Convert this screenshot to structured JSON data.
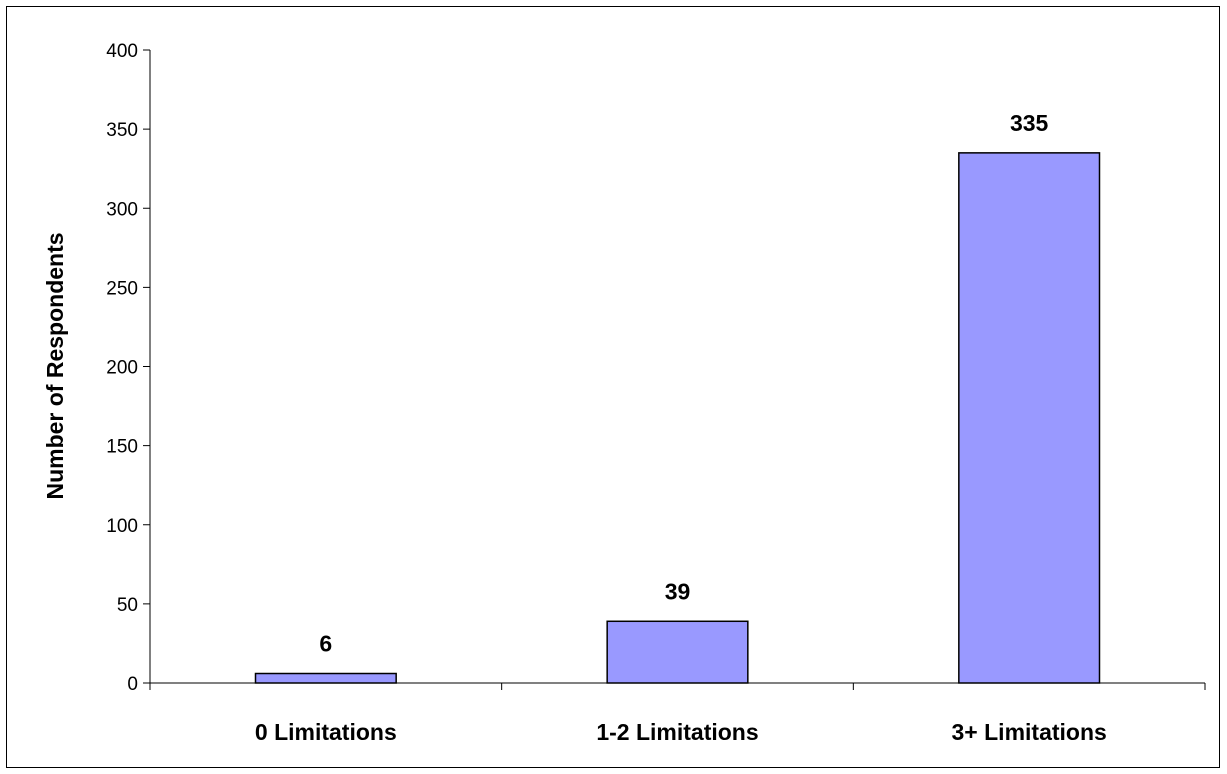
{
  "chart_data": {
    "type": "bar",
    "title": "",
    "xlabel": "",
    "ylabel": "Number of Respondents",
    "categories": [
      "0 Limitations",
      "1-2 Limitations",
      "3+ Limitations"
    ],
    "values": [
      6,
      39,
      335
    ],
    "data_labels": [
      "6",
      "39",
      "335"
    ],
    "ylim": [
      0,
      400
    ],
    "yticks": [
      0,
      50,
      100,
      150,
      200,
      250,
      300,
      350,
      400
    ],
    "grid": false,
    "legend": "none",
    "bar_color": "#9999ff",
    "bar_edge_color": "#000000"
  }
}
